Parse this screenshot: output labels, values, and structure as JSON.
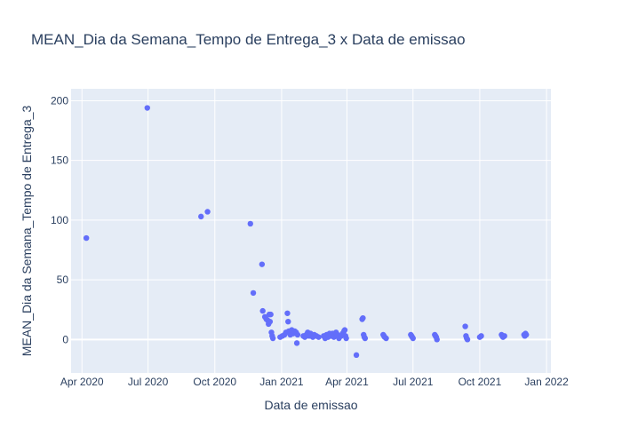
{
  "chart_data": {
    "type": "scatter",
    "title": "MEAN_Dia da Semana_Tempo de Entrega_3 x Data de emissao",
    "xlabel": "Data de emissao",
    "ylabel": "MEAN_Dia da Semana_Tempo de Entrega_3",
    "x_ticks": [
      "Apr 2020",
      "Jul 2020",
      "Oct 2020",
      "Jan 2021",
      "Apr 2021",
      "Jul 2021",
      "Oct 2021",
      "Jan 2022"
    ],
    "y_ticks": [
      0,
      50,
      100,
      150,
      200
    ],
    "xlim": [
      "2020-03-17",
      "2022-01-07"
    ],
    "ylim": [
      -28,
      210
    ],
    "grid": true,
    "background_color": "#e5ecf6",
    "marker_color": "#636efa",
    "series": [
      {
        "points": [
          {
            "x": "2020-04-07",
            "y": 85
          },
          {
            "x": "2020-06-30",
            "y": 194
          },
          {
            "x": "2020-09-12",
            "y": 103
          },
          {
            "x": "2020-09-21",
            "y": 107
          },
          {
            "x": "2020-11-19",
            "y": 97
          },
          {
            "x": "2020-11-23",
            "y": 39
          },
          {
            "x": "2020-12-05",
            "y": 63
          },
          {
            "x": "2020-12-06",
            "y": 24
          },
          {
            "x": "2020-12-09",
            "y": 19
          },
          {
            "x": "2020-12-11",
            "y": 17
          },
          {
            "x": "2020-12-13",
            "y": 16
          },
          {
            "x": "2020-12-14",
            "y": 13
          },
          {
            "x": "2020-12-15",
            "y": 21
          },
          {
            "x": "2020-12-16",
            "y": 15
          },
          {
            "x": "2020-12-17",
            "y": 21
          },
          {
            "x": "2020-12-18",
            "y": 6
          },
          {
            "x": "2020-12-19",
            "y": 3
          },
          {
            "x": "2020-12-20",
            "y": 1
          },
          {
            "x": "2020-12-30",
            "y": 2
          },
          {
            "x": "2021-01-02",
            "y": 3
          },
          {
            "x": "2021-01-05",
            "y": 4
          },
          {
            "x": "2021-01-07",
            "y": 6
          },
          {
            "x": "2021-01-09",
            "y": 22
          },
          {
            "x": "2021-01-10",
            "y": 15
          },
          {
            "x": "2021-01-11",
            "y": 7
          },
          {
            "x": "2021-01-13",
            "y": 4
          },
          {
            "x": "2021-01-15",
            "y": 8
          },
          {
            "x": "2021-01-17",
            "y": 5
          },
          {
            "x": "2021-01-19",
            "y": 7
          },
          {
            "x": "2021-01-21",
            "y": 6
          },
          {
            "x": "2021-01-22",
            "y": -3
          },
          {
            "x": "2021-01-23",
            "y": 4
          },
          {
            "x": "2021-01-31",
            "y": 3
          },
          {
            "x": "2021-02-02",
            "y": 2
          },
          {
            "x": "2021-02-04",
            "y": 4
          },
          {
            "x": "2021-02-06",
            "y": 6
          },
          {
            "x": "2021-02-08",
            "y": 3
          },
          {
            "x": "2021-02-10",
            "y": 5
          },
          {
            "x": "2021-02-13",
            "y": 2
          },
          {
            "x": "2021-02-15",
            "y": 4
          },
          {
            "x": "2021-02-18",
            "y": 3
          },
          {
            "x": "2021-02-21",
            "y": 2
          },
          {
            "x": "2021-02-28",
            "y": 3
          },
          {
            "x": "2021-03-02",
            "y": 1
          },
          {
            "x": "2021-03-04",
            "y": 4
          },
          {
            "x": "2021-03-06",
            "y": 2
          },
          {
            "x": "2021-03-08",
            "y": 5
          },
          {
            "x": "2021-03-10",
            "y": 3
          },
          {
            "x": "2021-03-12",
            "y": 5
          },
          {
            "x": "2021-03-14",
            "y": 2
          },
          {
            "x": "2021-03-17",
            "y": 6
          },
          {
            "x": "2021-03-19",
            "y": 4
          },
          {
            "x": "2021-03-21",
            "y": 1
          },
          {
            "x": "2021-03-24",
            "y": 3
          },
          {
            "x": "2021-03-26",
            "y": 5
          },
          {
            "x": "2021-03-28",
            "y": 7
          },
          {
            "x": "2021-03-29",
            "y": 8
          },
          {
            "x": "2021-03-30",
            "y": 3
          },
          {
            "x": "2021-03-31",
            "y": 1
          },
          {
            "x": "2021-04-14",
            "y": -13
          },
          {
            "x": "2021-04-22",
            "y": 17
          },
          {
            "x": "2021-04-23",
            "y": 18
          },
          {
            "x": "2021-04-24",
            "y": 4
          },
          {
            "x": "2021-04-25",
            "y": 2
          },
          {
            "x": "2021-04-26",
            "y": 1
          },
          {
            "x": "2021-05-21",
            "y": 4
          },
          {
            "x": "2021-05-22",
            "y": 3
          },
          {
            "x": "2021-05-23",
            "y": 2
          },
          {
            "x": "2021-05-25",
            "y": 1
          },
          {
            "x": "2021-06-28",
            "y": 4
          },
          {
            "x": "2021-06-29",
            "y": 3
          },
          {
            "x": "2021-06-30",
            "y": 2
          },
          {
            "x": "2021-07-01",
            "y": 1
          },
          {
            "x": "2021-07-31",
            "y": 4
          },
          {
            "x": "2021-08-01",
            "y": 3
          },
          {
            "x": "2021-08-02",
            "y": 2
          },
          {
            "x": "2021-08-03",
            "y": 0
          },
          {
            "x": "2021-09-11",
            "y": 11
          },
          {
            "x": "2021-09-12",
            "y": 3
          },
          {
            "x": "2021-09-13",
            "y": 1
          },
          {
            "x": "2021-09-14",
            "y": 0
          },
          {
            "x": "2021-10-01",
            "y": 2
          },
          {
            "x": "2021-10-03",
            "y": 3
          },
          {
            "x": "2021-10-31",
            "y": 4
          },
          {
            "x": "2021-11-01",
            "y": 3
          },
          {
            "x": "2021-11-02",
            "y": 2
          },
          {
            "x": "2021-11-04",
            "y": 3
          },
          {
            "x": "2021-12-01",
            "y": 4
          },
          {
            "x": "2021-12-02",
            "y": 3
          },
          {
            "x": "2021-12-03",
            "y": 5
          },
          {
            "x": "2021-12-04",
            "y": 4
          }
        ]
      }
    ]
  }
}
